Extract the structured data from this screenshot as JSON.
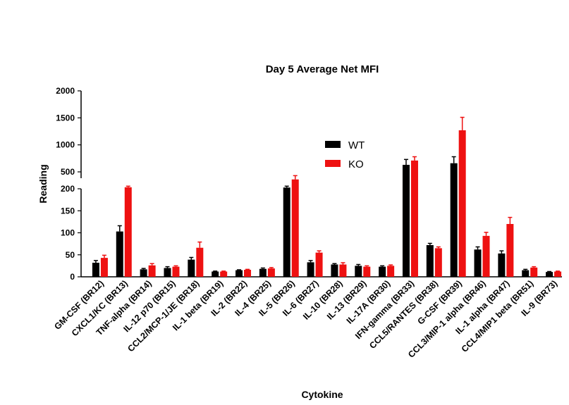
{
  "chart_data": {
    "type": "bar",
    "title": "Day 5 Average Net MFI",
    "xlabel": "Cytokine",
    "ylabel": "Reading",
    "y_axis_break": {
      "lower_range": [
        0,
        200
      ],
      "upper_range": [
        200,
        2000
      ]
    },
    "y_ticks_lower": [
      0,
      50,
      100,
      150,
      200
    ],
    "y_ticks_upper": [
      500,
      1000,
      1500,
      2000
    ],
    "y_tick_labels_lower": [
      "0",
      "50",
      "100",
      "150",
      "200"
    ],
    "y_tick_labels_upper": [
      "500",
      "1000",
      "1500",
      "2000"
    ],
    "legend_position": "center",
    "grid": false,
    "categories": [
      "GM-CSF (BR12)",
      "CXCL1/KC (BR13)",
      "TNF-alpha (BR14)",
      "IL-12 p70 (BR15)",
      "CCL2/MCP-1/JE (BR18)",
      "IL-1 beta (BR19)",
      "IL-2 (BR22)",
      "IL-4 (BR25)",
      "IL-5 (BR26)",
      "IL-6 (BR27)",
      "IL-10 (BR28)",
      "IL-13 (BR29)",
      "IL-17A (BR30)",
      "IFN-gamma (BR33)",
      "CCL5/RANTES (BR38)",
      "G-CSF (BR39)",
      "CCL3/MIP-1 alpha (BR46)",
      "IL-1 alpha (BR47)",
      "CCL4/MIP1 beta (BR51)",
      "IL-9 (BR73)"
    ],
    "series": [
      {
        "name": "WT",
        "color": "#000000",
        "values": [
          32,
          103,
          17,
          20,
          39,
          12,
          15,
          18,
          210,
          33,
          28,
          25,
          23,
          630,
          72,
          660,
          62,
          53,
          15,
          11
        ],
        "errors": [
          5,
          13,
          2,
          3,
          5,
          1,
          1,
          2,
          25,
          4,
          2,
          3,
          2,
          100,
          4,
          120,
          6,
          6,
          2,
          1
        ]
      },
      {
        "name": "KO",
        "color": "#ee1111",
        "values": [
          43,
          215,
          26,
          23,
          66,
          12,
          16,
          19,
          360,
          55,
          28,
          23,
          25,
          710,
          65,
          1270,
          93,
          120,
          21,
          12
        ],
        "errors": [
          6,
          20,
          4,
          2,
          13,
          1,
          1,
          2,
          70,
          4,
          4,
          2,
          2,
          70,
          3,
          240,
          8,
          15,
          2,
          1
        ]
      }
    ]
  }
}
